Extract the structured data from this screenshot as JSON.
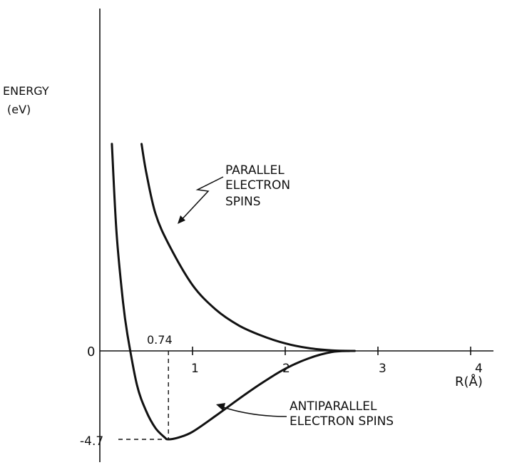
{
  "chart_data": {
    "type": "line",
    "title": "",
    "ylabel_line1": "ENERGY",
    "ylabel_line2": "(eV)",
    "xlabel": "R(Å)",
    "x_ticks": [
      "1",
      "2",
      "3",
      "4"
    ],
    "x_tick_values": [
      1,
      2,
      3,
      4
    ],
    "y_tick_zero": "0",
    "y_zero_value": 0,
    "xlim": [
      -0.8,
      4.2
    ],
    "ylim": [
      -5.0,
      13.0
    ],
    "grid": false,
    "legend": "none",
    "equilibrium": {
      "x": 0.74,
      "y": -4.7,
      "x_label": "0.74",
      "y_label": "-4.7"
    },
    "series": [
      {
        "name": "PARALLEL ELECTRON SPINS",
        "label_lines": [
          "PARALLEL",
          "ELECTRON",
          "SPINS"
        ],
        "x": [
          0.45,
          0.5,
          0.6,
          0.75,
          1.0,
          1.25,
          1.5,
          1.75,
          2.0,
          2.25,
          2.5,
          2.75
        ],
        "y": [
          11.0,
          9.5,
          7.3,
          5.6,
          3.5,
          2.2,
          1.35,
          0.8,
          0.4,
          0.15,
          0.03,
          0.0
        ]
      },
      {
        "name": "ANTIPARALLEL ELECTRON SPINS",
        "label_lines": [
          "ANTIPARALLEL",
          "ELECTRON SPINS"
        ],
        "x": [
          0.13,
          0.18,
          0.25,
          0.3,
          0.4,
          0.5,
          0.6,
          0.7,
          0.74,
          0.85,
          1.0,
          1.25,
          1.5,
          1.75,
          2.0,
          2.25,
          2.5,
          2.7
        ],
        "y": [
          11.0,
          6.3,
          2.6,
          0.8,
          -1.8,
          -3.2,
          -4.1,
          -4.6,
          -4.7,
          -4.6,
          -4.3,
          -3.45,
          -2.55,
          -1.7,
          -0.95,
          -0.4,
          -0.06,
          0.0
        ]
      }
    ]
  }
}
